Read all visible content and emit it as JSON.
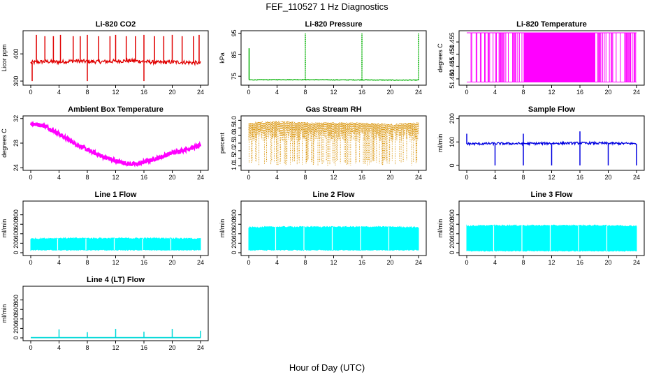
{
  "figure": {
    "title": "FEF_110527  1 Hz Diagnostics",
    "xlabel": "Hour of Day (UTC)"
  },
  "chart_data": [
    {
      "type": "line",
      "title": "Li-820 CO2",
      "ylabel": "Licor ppm",
      "xlim": [
        0,
        24
      ],
      "ylim": [
        290,
        480
      ],
      "xticks": [
        "0",
        "4",
        "8",
        "12",
        "16",
        "20",
        "24"
      ],
      "yticks": [
        "300",
        "400"
      ],
      "ytick_values": [
        300,
        400
      ],
      "color": "#e00000",
      "style": "co2",
      "x": [
        0,
        2,
        4,
        6,
        8,
        10,
        12,
        14,
        16,
        18,
        20,
        22,
        24
      ],
      "y": [
        368,
        372,
        370,
        374,
        372,
        371,
        373,
        375,
        372,
        368,
        370,
        369,
        366
      ]
    },
    {
      "type": "line",
      "title": "Li-820 Pressure",
      "ylabel": "kPa",
      "xlim": [
        0,
        24
      ],
      "ylim": [
        71.5,
        95.5
      ],
      "xticks": [
        "0",
        "4",
        "8",
        "12",
        "16",
        "20",
        "24"
      ],
      "yticks": [
        "75",
        "85",
        "95"
      ],
      "ytick_values": [
        75,
        85,
        95
      ],
      "color": "#00b000",
      "style": "pressure",
      "x": [
        0,
        4,
        8,
        12,
        16,
        20,
        24
      ],
      "y": [
        73.3,
        73.4,
        73.4,
        73.3,
        73.3,
        73.2,
        73.2
      ]
    },
    {
      "type": "line",
      "title": "Li-820 Temperature",
      "ylabel": "degrees C",
      "xlim": [
        0,
        24
      ],
      "ylim": [
        51.438,
        51.459
      ],
      "xticks": [
        "0",
        "4",
        "8",
        "12",
        "16",
        "20",
        "24"
      ],
      "yticks": [
        "51.440",
        "51.445",
        "51.450",
        "51.455"
      ],
      "ytick_values": [
        51.44,
        51.445,
        51.45,
        51.455
      ],
      "color": "#ff00ff",
      "style": "temp_toggle",
      "x": [
        0,
        24
      ],
      "y": [
        51.4387,
        51.4587
      ]
    },
    {
      "type": "line",
      "title": "Ambient Box Temperature",
      "ylabel": "degrees C",
      "xlim": [
        0,
        24
      ],
      "ylim": [
        23.8,
        32.2
      ],
      "xticks": [
        "0",
        "4",
        "8",
        "12",
        "16",
        "20",
        "24"
      ],
      "yticks": [
        "24",
        "28",
        "32"
      ],
      "ytick_values": [
        24,
        28,
        32
      ],
      "color": "#ff00ff",
      "style": "ambient",
      "x": [
        0,
        2,
        4,
        6,
        8,
        10,
        12,
        14,
        15,
        16,
        18,
        20,
        22,
        24
      ],
      "y": [
        31.2,
        30.8,
        29.5,
        28.1,
        26.9,
        25.9,
        25.1,
        24.6,
        24.6,
        24.9,
        25.6,
        26.4,
        27.0,
        27.6
      ]
    },
    {
      "type": "scatter",
      "title": "Gas Stream RH",
      "ylabel": "percent",
      "xlim": [
        0,
        24
      ],
      "ylim": [
        0.8,
        4.2
      ],
      "xticks": [
        "0",
        "4",
        "8",
        "12",
        "16",
        "20",
        "24"
      ],
      "yticks": [
        "1.0",
        "1.5",
        "2.0",
        "2.5",
        "3.0",
        "3.5",
        "4.0"
      ],
      "ytick_values": [
        1.0,
        1.5,
        2.0,
        2.5,
        3.0,
        3.5,
        4.0
      ],
      "color": "#d89000",
      "style": "rh",
      "x": [
        0,
        4,
        8,
        12,
        16,
        20,
        24
      ],
      "y": [
        3.8,
        3.9,
        3.8,
        3.8,
        3.8,
        3.7,
        3.8
      ]
    },
    {
      "type": "line",
      "title": "Sample Flow",
      "ylabel": "ml/min",
      "xlim": [
        0,
        24
      ],
      "ylim": [
        -15,
        205
      ],
      "xticks": [
        "0",
        "4",
        "8",
        "12",
        "16",
        "20",
        "24"
      ],
      "yticks": [
        "0",
        "100",
        "200"
      ],
      "ytick_values": [
        0,
        100,
        200
      ],
      "color": "#0000e0",
      "style": "sample",
      "x": [
        0,
        4,
        8,
        12,
        16,
        20,
        24
      ],
      "y": [
        92,
        93,
        93,
        94,
        95,
        94,
        93
      ]
    },
    {
      "type": "area",
      "title": "Line 1 Flow",
      "ylabel": "ml/min",
      "xlim": [
        0,
        24
      ],
      "ylim": [
        -30,
        1060
      ],
      "xticks": [
        "0",
        "4",
        "8",
        "12",
        "16",
        "20",
        "24"
      ],
      "yticks": [
        "0",
        "200",
        "400",
        "600",
        "800"
      ],
      "ytick_values": [
        0,
        200,
        400,
        600,
        800
      ],
      "color": "#00ffff",
      "style": "band",
      "x": [
        0,
        4,
        8,
        12,
        16,
        20,
        24
      ],
      "y_high": [
        290,
        300,
        300,
        300,
        300,
        300,
        290
      ],
      "y_low": [
        60,
        60,
        60,
        60,
        60,
        60,
        60
      ]
    },
    {
      "type": "area",
      "title": "Line 2 Flow",
      "ylabel": "ml/min",
      "xlim": [
        0,
        24
      ],
      "ylim": [
        -30,
        1060
      ],
      "xticks": [
        "0",
        "4",
        "8",
        "12",
        "16",
        "20",
        "24"
      ],
      "yticks": [
        "0",
        "200",
        "400",
        "600",
        "800"
      ],
      "ytick_values": [
        0,
        200,
        400,
        600,
        800
      ],
      "color": "#00ffff",
      "style": "band",
      "x": [
        0,
        4,
        8,
        12,
        16,
        20,
        24
      ],
      "y_high": [
        530,
        540,
        540,
        540,
        540,
        540,
        530
      ],
      "y_low": [
        60,
        60,
        60,
        60,
        60,
        60,
        60
      ]
    },
    {
      "type": "area",
      "title": "Line 3 Flow",
      "ylabel": "ml/min",
      "xlim": [
        0,
        24
      ],
      "ylim": [
        -30,
        1060
      ],
      "xticks": [
        "0",
        "4",
        "8",
        "12",
        "16",
        "20",
        "24"
      ],
      "yticks": [
        "0",
        "200",
        "400",
        "600",
        "800"
      ],
      "ytick_values": [
        0,
        200,
        400,
        600,
        800
      ],
      "color": "#00ffff",
      "style": "band",
      "x": [
        0,
        4,
        8,
        12,
        16,
        20,
        24
      ],
      "y_high": [
        560,
        570,
        570,
        570,
        570,
        570,
        560
      ],
      "y_low": [
        40,
        40,
        40,
        40,
        40,
        40,
        40
      ]
    },
    {
      "type": "line",
      "title": "Line 4 (LT) Flow",
      "ylabel": "ml/min",
      "xlim": [
        0,
        24
      ],
      "ylim": [
        -30,
        1060
      ],
      "xticks": [
        "0",
        "4",
        "8",
        "12",
        "16",
        "20",
        "24"
      ],
      "yticks": [
        "0",
        "200",
        "400",
        "600",
        "800"
      ],
      "ytick_values": [
        0,
        200,
        400,
        600,
        800
      ],
      "color": "#00d8d8",
      "style": "lt",
      "x": [
        0,
        4,
        8,
        12,
        16,
        20,
        24
      ],
      "y": [
        5,
        5,
        5,
        5,
        5,
        5,
        5
      ],
      "spikes_x": [
        4,
        8,
        12,
        16,
        20,
        24
      ],
      "spikes_y": [
        180,
        120,
        190,
        130,
        190,
        150
      ]
    }
  ]
}
